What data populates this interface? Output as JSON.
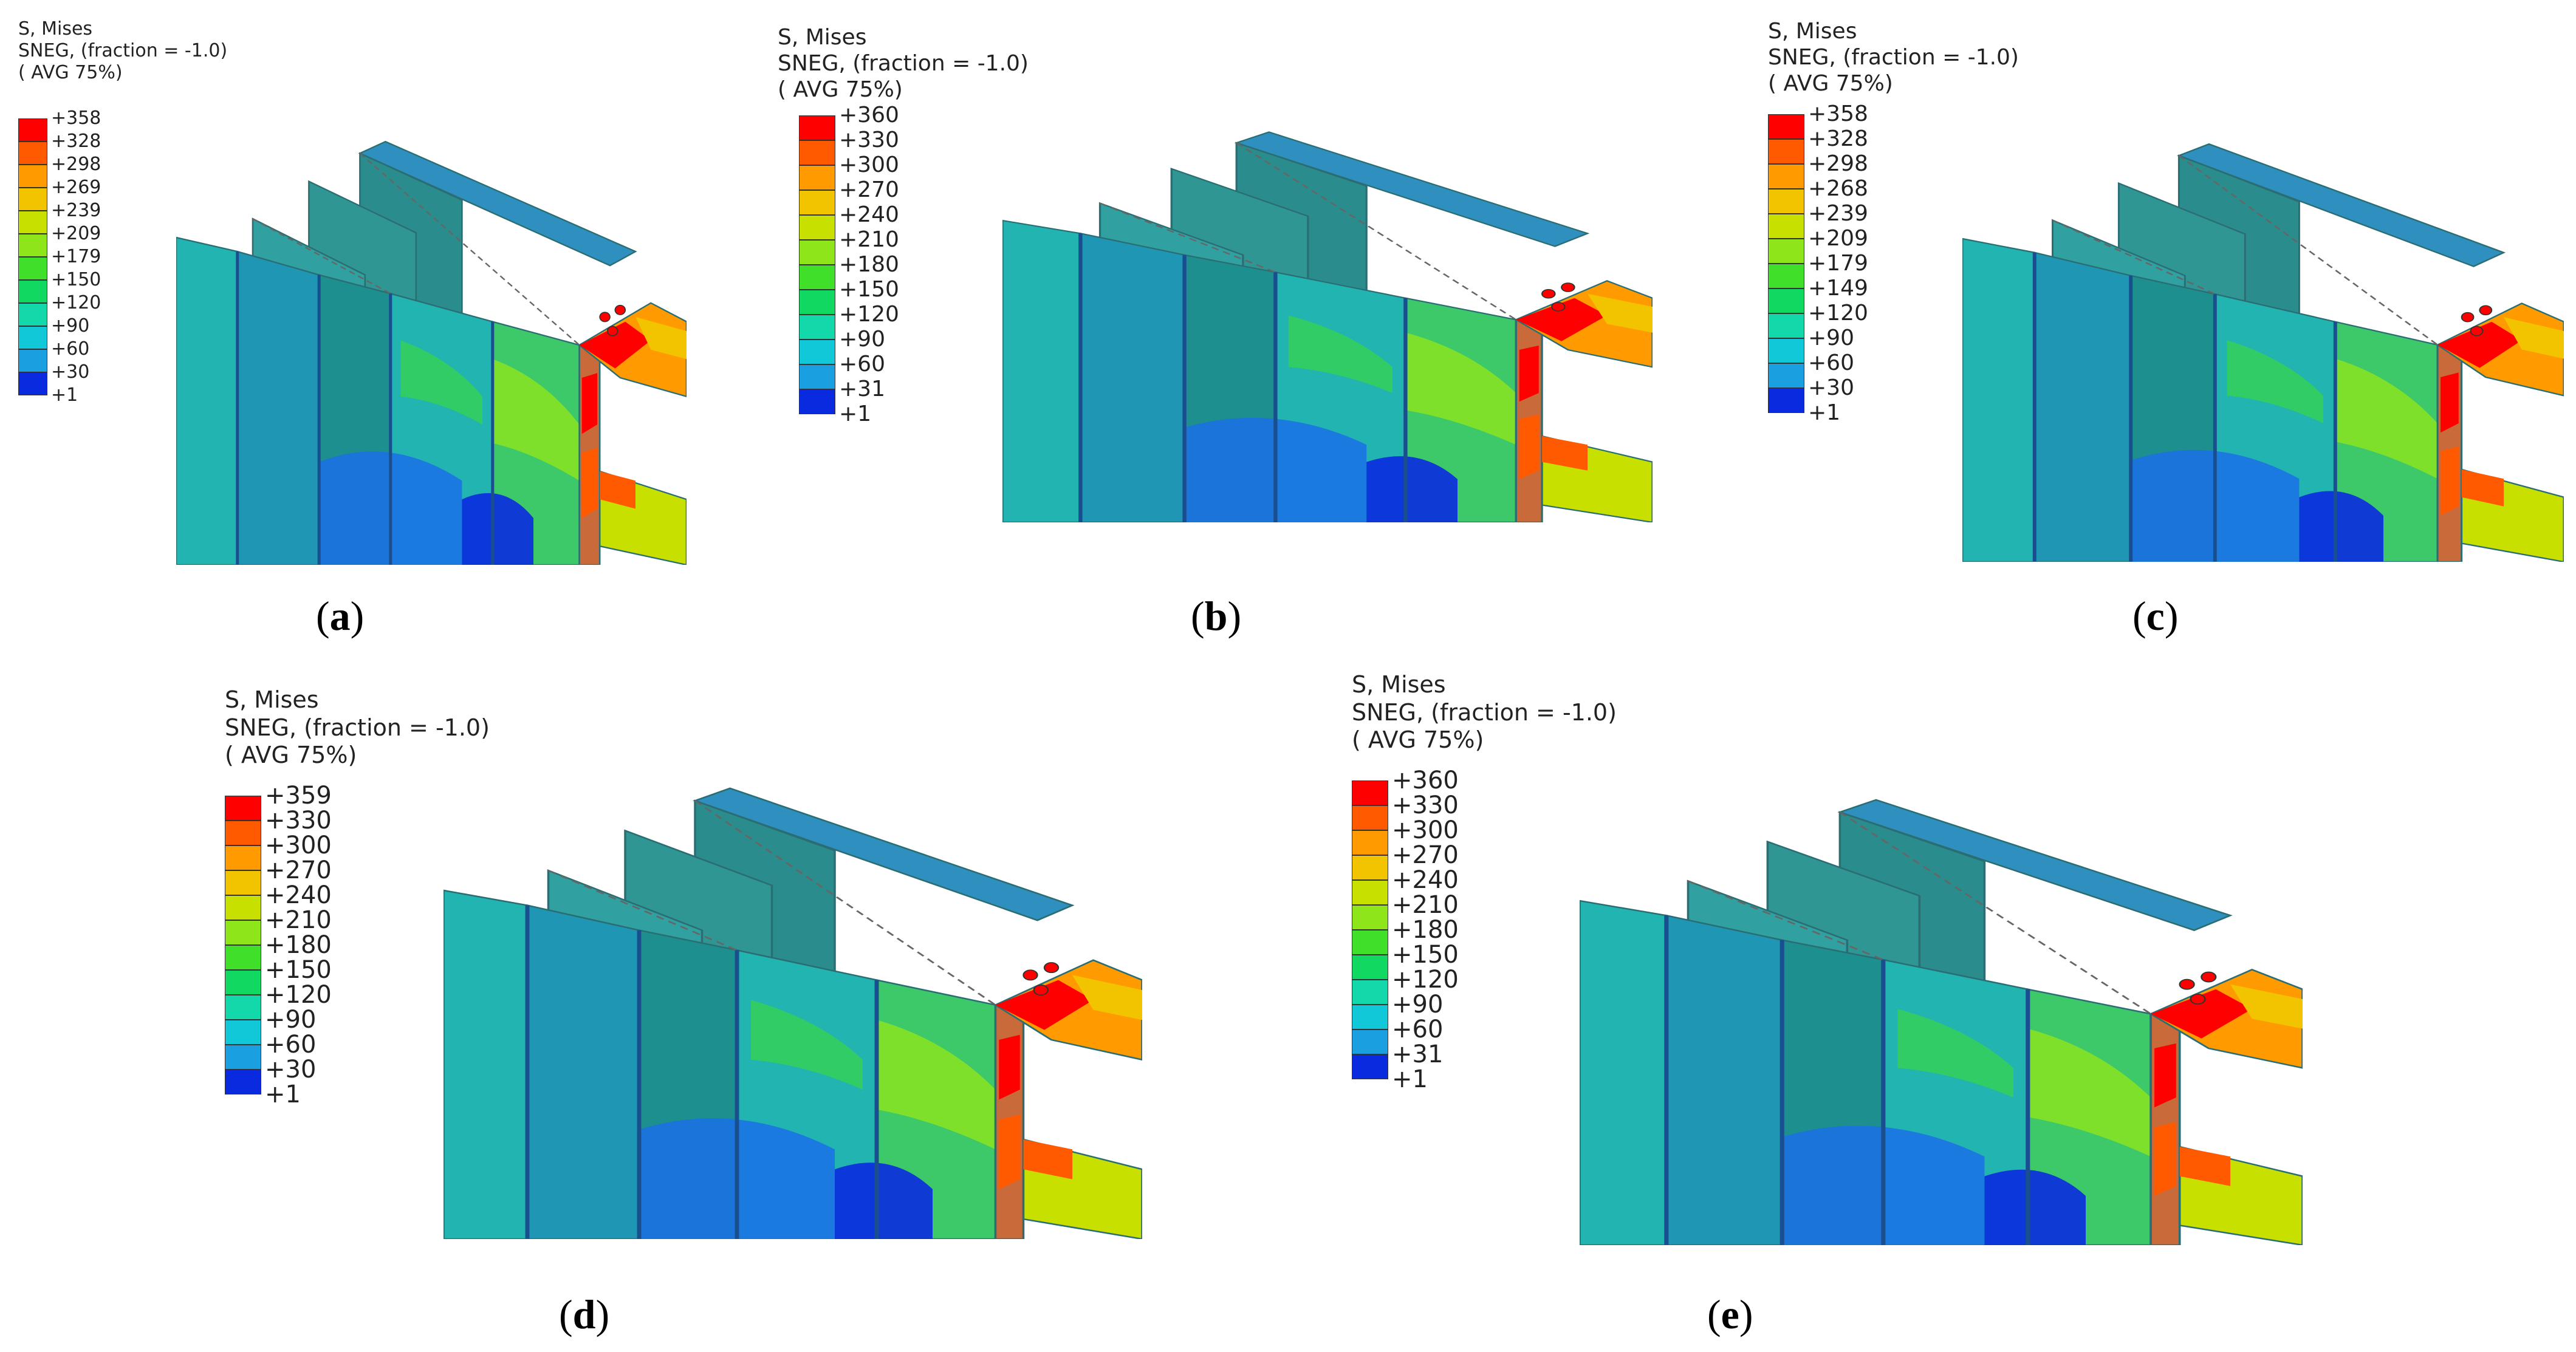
{
  "legend_header": {
    "line1": "S, Mises",
    "line2": "SNEG, (fraction = -1.0)",
    "line3": "( AVG 75%)"
  },
  "contour_colors": [
    "#ff0000",
    "#ff5a00",
    "#ff9a00",
    "#f2c400",
    "#c8e000",
    "#8ee61a",
    "#40e02a",
    "#10d860",
    "#12d8aa",
    "#10c8d8",
    "#1aa0e0",
    "#1a70e8",
    "#0a2ae0"
  ],
  "panels": [
    {
      "id": "a",
      "caption_letter": "a",
      "values": [
        "+358",
        "+328",
        "+298",
        "+269",
        "+239",
        "+209",
        "+179",
        "+150",
        "+120",
        "+90",
        "+60",
        "+30",
        "+1"
      ]
    },
    {
      "id": "b",
      "caption_letter": "b",
      "values": [
        "+360",
        "+330",
        "+300",
        "+270",
        "+240",
        "+210",
        "+180",
        "+150",
        "+120",
        "+90",
        "+60",
        "+31",
        "+1"
      ]
    },
    {
      "id": "c",
      "caption_letter": "c",
      "values": [
        "+358",
        "+328",
        "+298",
        "+268",
        "+239",
        "+209",
        "+179",
        "+149",
        "+120",
        "+90",
        "+60",
        "+30",
        "+1"
      ]
    },
    {
      "id": "d",
      "caption_letter": "d",
      "values": [
        "+359",
        "+330",
        "+300",
        "+270",
        "+240",
        "+210",
        "+180",
        "+150",
        "+120",
        "+90",
        "+60",
        "+30",
        "+1"
      ]
    },
    {
      "id": "e",
      "caption_letter": "e",
      "values": [
        "+360",
        "+330",
        "+300",
        "+270",
        "+240",
        "+210",
        "+180",
        "+150",
        "+120",
        "+90",
        "+60",
        "+31",
        "+1"
      ]
    }
  ]
}
